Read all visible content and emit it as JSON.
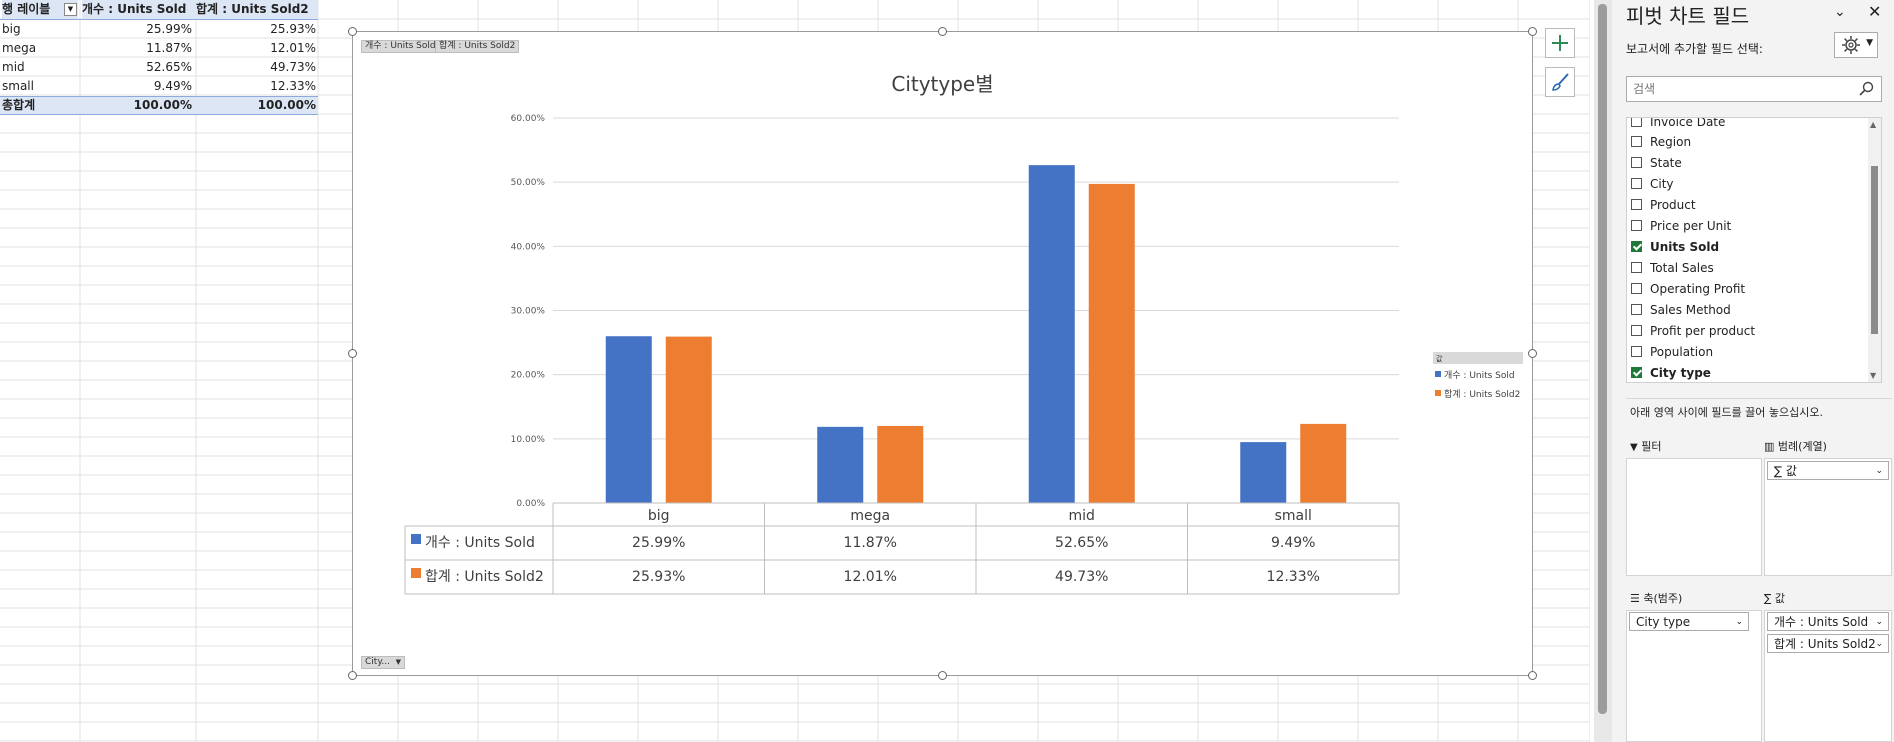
{
  "pivot_table": {
    "header": {
      "row_label": "행 레이블",
      "col1": "개수 : Units Sold",
      "col2": "합계 : Units Sold2"
    },
    "rows": [
      {
        "label": "big",
        "v1": "25.99%",
        "v2": "25.93%"
      },
      {
        "label": "mega",
        "v1": "11.87%",
        "v2": "12.01%"
      },
      {
        "label": "mid",
        "v1": "52.65%",
        "v2": "49.73%"
      },
      {
        "label": "small",
        "v1": "9.49%",
        "v2": "12.33%"
      }
    ],
    "total": {
      "label": "총합계",
      "v1": "100.00%",
      "v2": "100.00%"
    }
  },
  "chart_buttons": {
    "top_left": [
      "개수 : Units Sold",
      "합계 : Units Sold2"
    ],
    "bottom_left": "City..."
  },
  "chart_data": {
    "type": "bar",
    "title": "Citytype별",
    "categories": [
      "big",
      "mega",
      "mid",
      "small"
    ],
    "series": [
      {
        "name": "개수 : Units Sold",
        "color": "#4472c4",
        "values": [
          25.99,
          11.87,
          52.65,
          9.49
        ],
        "labels": [
          "25.99%",
          "11.87%",
          "52.65%",
          "9.49%"
        ]
      },
      {
        "name": "합계 : Units Sold2",
        "color": "#ed7d31",
        "values": [
          25.93,
          12.01,
          49.73,
          12.33
        ],
        "labels": [
          "25.93%",
          "12.01%",
          "49.73%",
          "12.33%"
        ]
      }
    ],
    "ylim": [
      0,
      60
    ],
    "yticks": [
      "0.00%",
      "10.00%",
      "20.00%",
      "30.00%",
      "40.00%",
      "50.00%",
      "60.00%"
    ],
    "legend_title": "값",
    "legend_placement": "right",
    "data_table": true,
    "grid": true
  },
  "panel": {
    "title": "피벗 차트 필드",
    "subtitle": "보고서에 추가할 필드 선택:",
    "search_placeholder": "검색",
    "fields": [
      {
        "label": "Invoice Date",
        "checked": false
      },
      {
        "label": "Region",
        "checked": false
      },
      {
        "label": "State",
        "checked": false
      },
      {
        "label": "City",
        "checked": false
      },
      {
        "label": "Product",
        "checked": false
      },
      {
        "label": "Price per Unit",
        "checked": false
      },
      {
        "label": "Units Sold",
        "checked": true
      },
      {
        "label": "Total Sales",
        "checked": false
      },
      {
        "label": "Operating Profit",
        "checked": false
      },
      {
        "label": "Sales Method",
        "checked": false
      },
      {
        "label": "Profit per product",
        "checked": false
      },
      {
        "label": "Population",
        "checked": false
      },
      {
        "label": "City type",
        "checked": true
      }
    ],
    "drag_hint": "아래 영역 사이에 필드를 끌어 놓으십시오.",
    "areas": {
      "filter": "필터",
      "legend": "범례(계열)",
      "legend_item": "∑ 값",
      "axis": "축(범주)",
      "axis_item": "City type",
      "values": "∑ 값",
      "value_items": [
        "개수 : Units Sold",
        "합계 : Units Sold2"
      ]
    }
  }
}
